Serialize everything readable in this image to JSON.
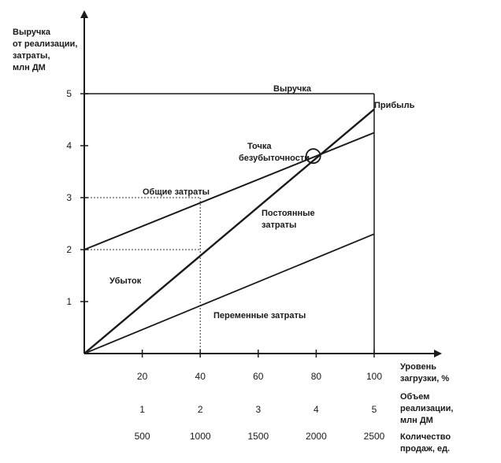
{
  "chart_data": {
    "type": "line",
    "ylabel": [
      "Выручка",
      "от реализации,",
      "затраты,",
      "млн ДМ"
    ],
    "xlim": [
      0,
      100
    ],
    "ylim": [
      0,
      5
    ],
    "y_ticks": [
      "1",
      "2",
      "3",
      "4",
      "5"
    ],
    "x_axis_rows": [
      {
        "ticks": [
          "20",
          "40",
          "60",
          "80",
          "100"
        ],
        "label": [
          "Уровень",
          "загрузки, %"
        ]
      },
      {
        "ticks": [
          "1",
          "2",
          "3",
          "4",
          "5"
        ],
        "label": [
          "Объем",
          "реализации,",
          "млн ДМ"
        ]
      },
      {
        "ticks": [
          "500",
          "1000",
          "1500",
          "2000",
          "2500"
        ],
        "label": [
          "Количество",
          "продаж, ед."
        ]
      }
    ],
    "grid": false,
    "series": [
      {
        "name": "Выручка",
        "x": [
          0,
          100
        ],
        "y": [
          0,
          4.7
        ]
      },
      {
        "name": "Общие затраты",
        "x": [
          0,
          100
        ],
        "y": [
          2.0,
          4.25
        ]
      },
      {
        "name": "Переменные затраты",
        "x": [
          0,
          100
        ],
        "y": [
          0,
          2.3
        ]
      }
    ],
    "annotations": {
      "revenue": "Выручка",
      "profit": "Прибыль",
      "breakeven": [
        "Точка",
        "безубыточности"
      ],
      "total_costs": "Общие затраты",
      "fixed_costs": [
        "Постоянные",
        "затраты"
      ],
      "loss": "Убыток",
      "variable_costs": "Переменные затраты"
    },
    "reference_points": [
      {
        "x": 40,
        "y": 2.0
      },
      {
        "x": 40,
        "y": 3.0
      }
    ],
    "breakeven_point": {
      "x": 79,
      "y": 3.8
    }
  }
}
